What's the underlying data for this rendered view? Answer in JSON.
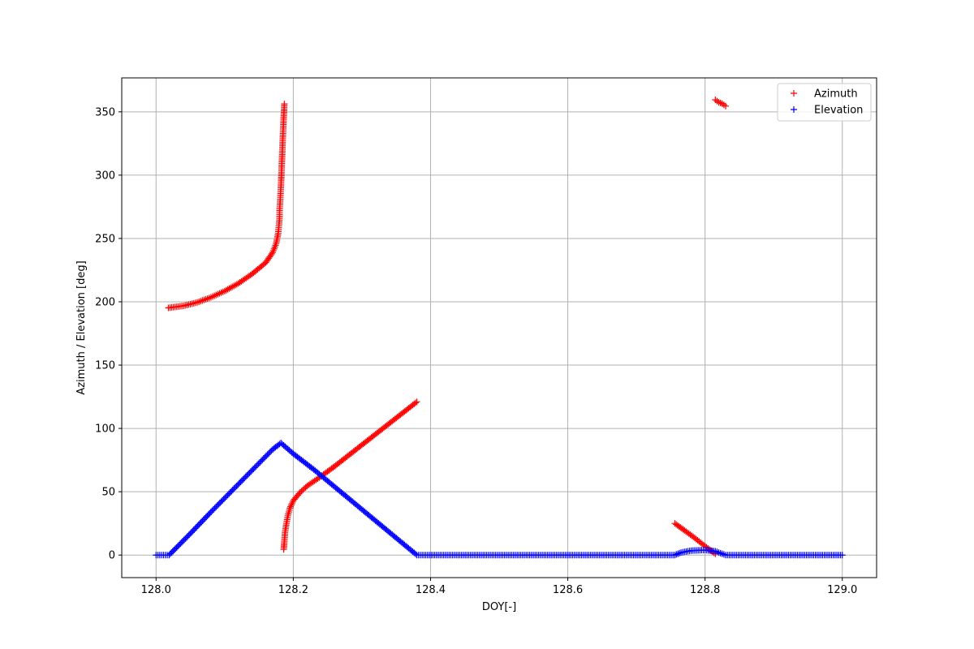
{
  "chart_data": {
    "type": "scatter",
    "title": "",
    "xlabel": "DOY[-]",
    "ylabel": "Azimuth / Elevation [deg]",
    "xlim": [
      127.95,
      129.05
    ],
    "ylim": [
      -17.8,
      376.8
    ],
    "xticks": [
      128.0,
      128.2,
      128.4,
      128.6,
      128.8,
      129.0
    ],
    "xtick_labels": [
      "128.0",
      "128.2",
      "128.4",
      "128.6",
      "128.8",
      "129.0"
    ],
    "yticks": [
      0,
      50,
      100,
      150,
      200,
      250,
      300,
      350
    ],
    "ytick_labels": [
      "0",
      "50",
      "100",
      "150",
      "200",
      "250",
      "300",
      "350"
    ],
    "grid": true,
    "legend_position": "top-right",
    "marker": "+",
    "series": [
      {
        "name": "Azimuth",
        "color": "#ff0000",
        "segments": [
          [
            [
              128.018,
              195.2
            ],
            [
              128.04,
              196.8
            ],
            [
              128.06,
              199.5
            ],
            [
              128.08,
              203.5
            ],
            [
              128.1,
              208.5
            ],
            [
              128.12,
              214.5
            ],
            [
              128.14,
              222.0
            ],
            [
              128.16,
              231.0
            ],
            [
              128.17,
              239.0
            ],
            [
              128.175,
              246.0
            ],
            [
              128.178,
              254.0
            ],
            [
              128.179,
              260.0
            ],
            [
              128.18,
              266.0
            ],
            [
              128.18,
              272.0
            ],
            [
              128.181,
              281.0
            ],
            [
              128.182,
              291.5
            ],
            [
              128.183,
              305.0
            ],
            [
              128.184,
              319.0
            ],
            [
              128.185,
              333.0
            ],
            [
              128.186,
              345.5
            ],
            [
              128.187,
              356.2
            ]
          ],
          [
            [
              128.186,
              4.5
            ],
            [
              128.187,
              11.0
            ],
            [
              128.188,
              18.0
            ],
            [
              128.19,
              25.0
            ],
            [
              128.192,
              31.0
            ],
            [
              128.195,
              37.0
            ],
            [
              128.2,
              43.0
            ],
            [
              128.21,
              49.5
            ],
            [
              128.22,
              54.5
            ],
            [
              128.24,
              62.0
            ],
            [
              128.26,
              70.0
            ],
            [
              128.28,
              78.5
            ],
            [
              128.3,
              87.0
            ],
            [
              128.32,
              95.5
            ],
            [
              128.34,
              104.0
            ],
            [
              128.36,
              112.5
            ],
            [
              128.38,
              121.0
            ]
          ],
          [
            [
              128.756,
              25.0
            ],
            [
              128.77,
              19.5
            ],
            [
              128.785,
              13.5
            ],
            [
              128.8,
              7.0
            ],
            [
              128.815,
              1.0
            ]
          ],
          [
            [
              128.815,
              359.5
            ],
            [
              128.82,
              357.5
            ],
            [
              128.825,
              356.5
            ],
            [
              128.83,
              354.5
            ]
          ]
        ]
      },
      {
        "name": "Elevation",
        "color": "#0000ff",
        "segments": [
          [
            [
              128.0,
              0.0
            ],
            [
              128.019,
              0.0
            ],
            [
              128.05,
              17.0
            ],
            [
              128.08,
              34.0
            ],
            [
              128.11,
              50.5
            ],
            [
              128.14,
              67.0
            ],
            [
              128.17,
              83.5
            ],
            [
              128.182,
              88.5
            ],
            [
              128.2,
              80.0
            ],
            [
              128.23,
              67.5
            ],
            [
              128.26,
              54.0
            ],
            [
              128.29,
              40.5
            ],
            [
              128.32,
              27.0
            ],
            [
              128.35,
              13.5
            ],
            [
              128.38,
              0.0
            ],
            [
              128.756,
              0.0
            ],
            [
              128.765,
              2.0
            ],
            [
              128.78,
              3.5
            ],
            [
              128.8,
              4.0
            ],
            [
              128.815,
              3.0
            ],
            [
              128.825,
              1.0
            ],
            [
              128.83,
              0.0
            ],
            [
              129.0,
              0.0
            ]
          ]
        ]
      }
    ]
  }
}
